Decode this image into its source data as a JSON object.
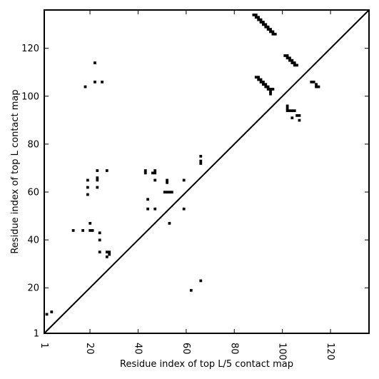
{
  "chart_data": {
    "type": "scatter",
    "title": "",
    "xlabel": "Residue index of top L/5 contact map",
    "ylabel": "Residue index of top L contact map",
    "xlim": [
      1,
      136
    ],
    "ylim": [
      1,
      136
    ],
    "xticks": [
      1,
      20,
      40,
      60,
      80,
      100,
      120
    ],
    "yticks": [
      1,
      20,
      40,
      60,
      80,
      100,
      120
    ],
    "grid": false,
    "legend": "none",
    "marker_color": "#000000",
    "diagonal": {
      "from": [
        1,
        1
      ],
      "to": [
        136,
        136
      ],
      "color": "#000000"
    },
    "series": [
      {
        "points": [
          [
            2,
            9
          ],
          [
            4,
            10
          ],
          [
            13,
            44
          ],
          [
            17,
            44
          ],
          [
            18,
            104
          ],
          [
            19,
            59
          ],
          [
            19,
            62
          ],
          [
            19,
            65
          ],
          [
            20,
            47
          ],
          [
            20,
            44
          ],
          [
            21,
            44
          ],
          [
            22,
            106
          ],
          [
            22,
            114
          ],
          [
            23,
            62
          ],
          [
            23,
            65
          ],
          [
            23,
            66
          ],
          [
            23,
            69
          ],
          [
            24,
            43
          ],
          [
            24,
            40
          ],
          [
            24,
            35
          ],
          [
            25,
            106
          ],
          [
            27,
            33
          ],
          [
            27,
            35
          ],
          [
            28,
            34
          ],
          [
            28,
            35
          ],
          [
            27,
            69
          ],
          [
            43,
            68
          ],
          [
            43,
            69
          ],
          [
            44,
            57
          ],
          [
            44,
            53
          ],
          [
            46,
            68
          ],
          [
            47,
            68
          ],
          [
            47,
            69
          ],
          [
            47,
            65
          ],
          [
            47,
            53
          ],
          [
            51,
            60
          ],
          [
            52,
            60
          ],
          [
            53,
            60
          ],
          [
            54,
            60
          ],
          [
            52,
            64
          ],
          [
            52,
            65
          ],
          [
            53,
            47
          ],
          [
            59,
            65
          ],
          [
            59,
            53
          ],
          [
            62,
            19
          ],
          [
            66,
            23
          ],
          [
            66,
            72
          ],
          [
            66,
            73
          ],
          [
            66,
            75
          ],
          [
            88,
            134
          ],
          [
            89,
            134
          ],
          [
            89,
            133
          ],
          [
            90,
            133
          ],
          [
            90,
            132
          ],
          [
            91,
            132
          ],
          [
            91,
            131
          ],
          [
            92,
            131
          ],
          [
            92,
            130
          ],
          [
            93,
            130
          ],
          [
            93,
            129
          ],
          [
            94,
            129
          ],
          [
            94,
            128
          ],
          [
            95,
            128
          ],
          [
            95,
            127
          ],
          [
            96,
            127
          ],
          [
            96,
            126
          ],
          [
            97,
            126
          ],
          [
            89,
            108
          ],
          [
            90,
            108
          ],
          [
            90,
            107
          ],
          [
            91,
            107
          ],
          [
            91,
            106
          ],
          [
            92,
            106
          ],
          [
            92,
            105
          ],
          [
            93,
            105
          ],
          [
            93,
            104
          ],
          [
            94,
            104
          ],
          [
            94,
            103
          ],
          [
            95,
            103
          ],
          [
            95,
            102
          ],
          [
            96,
            103
          ],
          [
            95,
            101
          ],
          [
            101,
            117
          ],
          [
            102,
            117
          ],
          [
            102,
            116
          ],
          [
            103,
            116
          ],
          [
            103,
            115
          ],
          [
            104,
            115
          ],
          [
            104,
            114
          ],
          [
            105,
            114
          ],
          [
            105,
            113
          ],
          [
            106,
            113
          ],
          [
            102,
            96
          ],
          [
            102,
            95
          ],
          [
            102,
            94
          ],
          [
            103,
            94
          ],
          [
            104,
            94
          ],
          [
            105,
            94
          ],
          [
            104,
            91
          ],
          [
            106,
            92
          ],
          [
            107,
            92
          ],
          [
            107,
            90
          ],
          [
            112,
            106
          ],
          [
            113,
            106
          ],
          [
            114,
            105
          ],
          [
            115,
            104
          ],
          [
            114,
            104
          ]
        ]
      }
    ]
  }
}
